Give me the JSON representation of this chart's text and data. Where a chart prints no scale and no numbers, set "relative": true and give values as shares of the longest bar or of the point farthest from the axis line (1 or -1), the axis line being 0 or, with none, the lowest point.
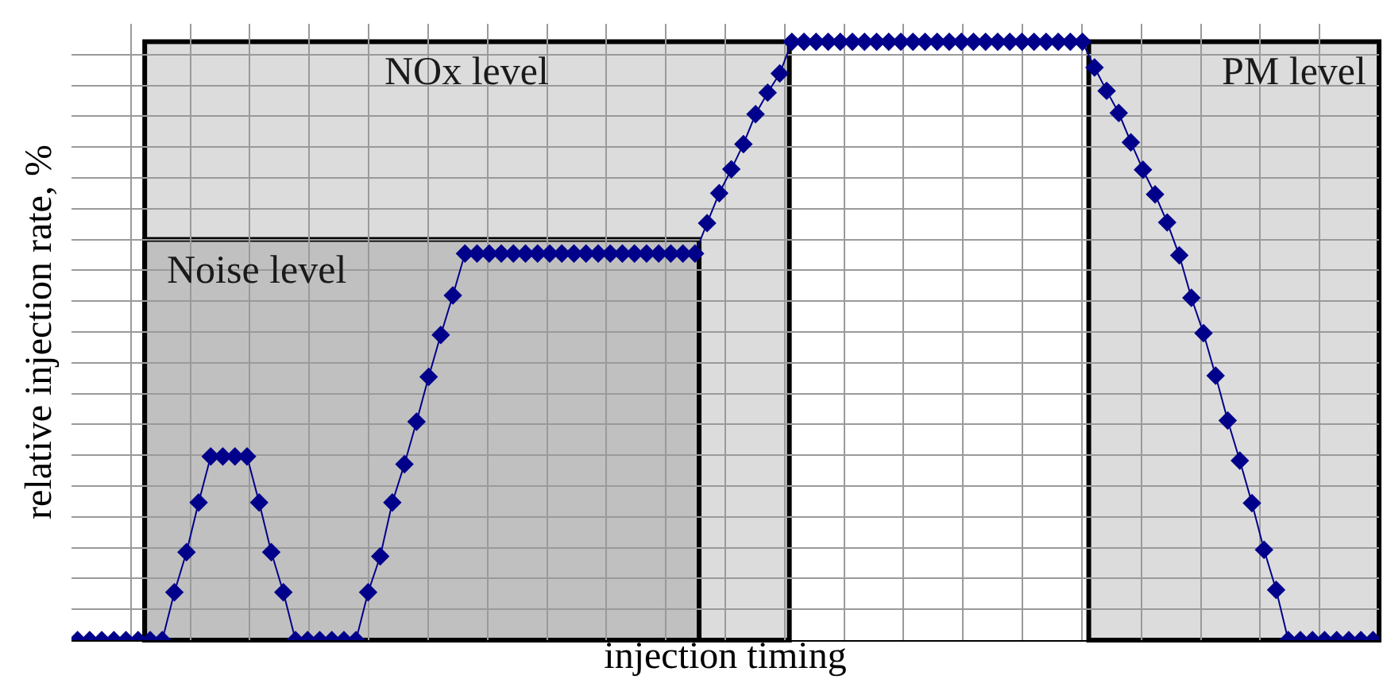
{
  "chart_data": {
    "type": "line",
    "relative": true,
    "xlabel": "injection timing",
    "ylabel": "relative injection rate, %",
    "tick_labels": false,
    "grid": true,
    "marker": "diamond",
    "line_style": "solid",
    "categories": [
      null,
      null,
      null,
      null,
      null,
      null,
      null,
      null,
      null,
      null,
      null,
      null,
      null,
      null,
      null,
      null,
      null,
      null,
      null,
      null,
      null,
      null,
      null,
      null,
      null,
      null,
      null,
      null,
      null,
      null,
      null,
      null,
      null,
      null,
      null,
      null,
      null,
      null,
      null,
      null,
      null,
      null,
      null,
      null,
      null,
      null,
      null,
      null,
      null,
      null,
      null,
      null,
      null,
      null,
      null,
      null,
      null,
      null,
      null,
      null,
      null,
      null,
      null,
      null,
      null,
      null,
      null,
      null,
      null,
      null,
      null,
      null,
      null,
      null,
      null,
      null,
      null,
      null,
      null,
      null,
      null,
      null,
      null,
      null,
      null,
      null,
      null,
      null,
      null,
      null,
      null,
      null,
      null,
      null,
      null,
      null,
      null,
      null,
      null,
      null,
      null,
      null,
      null,
      null,
      null,
      null,
      null,
      null
    ],
    "annotations": [
      "NOx level",
      "Noise level",
      "PM level"
    ],
    "series": [
      {
        "color": "#00008b",
        "values": [
          0,
          0,
          0,
          0,
          0,
          0,
          0,
          0,
          0.08,
          0.147,
          0.23,
          0.307,
          0.307,
          0.307,
          0.307,
          0.23,
          0.147,
          0.08,
          0,
          0,
          0,
          0,
          0,
          0,
          0.08,
          0.14,
          0.23,
          0.294,
          0.365,
          0.44,
          0.51,
          0.576,
          0.646,
          0.646,
          0.646,
          0.646,
          0.646,
          0.646,
          0.646,
          0.646,
          0.646,
          0.646,
          0.646,
          0.646,
          0.646,
          0.646,
          0.646,
          0.646,
          0.646,
          0.646,
          0.646,
          0.646,
          0.697,
          0.747,
          0.787,
          0.829,
          0.879,
          0.915,
          0.947,
          1,
          1,
          1,
          1,
          1,
          1,
          1,
          1,
          1,
          1,
          1,
          1,
          1,
          1,
          1,
          1,
          1,
          1,
          1,
          1,
          1,
          1,
          1,
          1,
          1,
          0.957,
          0.918,
          0.881,
          0.832,
          0.786,
          0.745,
          0.698,
          0.643,
          0.572,
          0.513,
          0.442,
          0.367,
          0.3,
          0.229,
          0.151,
          0.084,
          0,
          0,
          0,
          0,
          0,
          0,
          0,
          0
        ]
      }
    ]
  }
}
